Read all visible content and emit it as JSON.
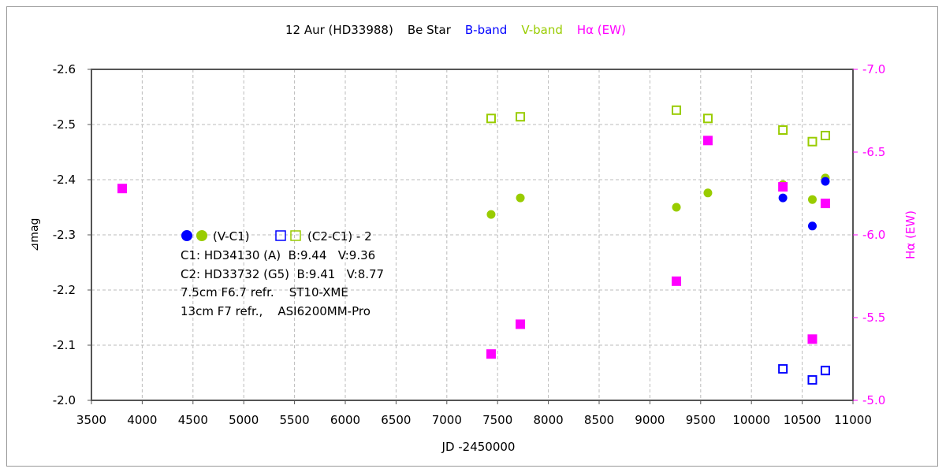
{
  "chart_data": {
    "type": "scatter",
    "title_parts": [
      {
        "text": "12 Aur (HD33988)",
        "color": "#000000"
      },
      {
        "text": "Be Star",
        "color": "#000000"
      },
      {
        "text": "B-band",
        "color": "#0000ff"
      },
      {
        "text": "V-band",
        "color": "#99cc00"
      },
      {
        "text": "Hα (EW)",
        "color": "#ff00ff"
      }
    ],
    "xlabel": "JD -2450000",
    "ylabel": "⊿mag",
    "y2label": "Hα (EW)",
    "xlim": [
      3500,
      11000
    ],
    "xticks": [
      3500,
      4000,
      4500,
      5000,
      5500,
      6000,
      6500,
      7000,
      7500,
      8000,
      8500,
      9000,
      9500,
      10000,
      10500,
      11000
    ],
    "ylim": [
      -2.6,
      -2.0
    ],
    "yticks": [
      -2.6,
      -2.5,
      -2.4,
      -2.3,
      -2.2,
      -2.1,
      -2.0
    ],
    "ytick_labels": [
      "-2.6",
      "-2.5",
      "-2.4",
      "-2.3",
      "-2.2",
      "-2.1",
      "-2.0"
    ],
    "y2lim": [
      -7.0,
      -5.0
    ],
    "y2ticks": [
      -7.0,
      -6.5,
      -6.0,
      -5.5,
      -5.0
    ],
    "y2tick_labels": [
      "-7.0",
      "-6.5",
      "-6.0",
      "-5.5",
      "-5.0"
    ],
    "y_inverted_display": "top value -2.6, bottom -2.0",
    "grid": true,
    "series": [
      {
        "key": "b_vc1",
        "marker": "filled-circle",
        "color": "#0000ff",
        "axis": "left",
        "x": [
          10310,
          10600,
          10728
        ],
        "y": [
          -2.367,
          -2.316,
          -2.397
        ]
      },
      {
        "key": "v_vc1",
        "marker": "filled-circle",
        "color": "#99cc00",
        "axis": "left",
        "x": [
          7436,
          7724,
          9261,
          9571,
          10310,
          10600,
          10728
        ],
        "y": [
          -2.337,
          -2.367,
          -2.35,
          -2.376,
          -2.391,
          -2.364,
          -2.403
        ]
      },
      {
        "key": "b_c2c1",
        "marker": "open-square",
        "color": "#0000ff",
        "axis": "left",
        "x": [
          10310,
          10600,
          10728
        ],
        "y": [
          -2.057,
          -2.037,
          -2.054
        ]
      },
      {
        "key": "v_c2c1",
        "marker": "open-square",
        "color": "#99cc00",
        "axis": "left",
        "x": [
          7436,
          7724,
          9261,
          9571,
          10310,
          10600,
          10728
        ],
        "y": [
          -2.511,
          -2.514,
          -2.526,
          -2.511,
          -2.49,
          -2.469,
          -2.48
        ]
      },
      {
        "key": "halpha",
        "marker": "filled-square",
        "color": "#ff00ff",
        "axis": "right",
        "x": [
          3803,
          7436,
          7724,
          9261,
          9571,
          10310,
          10600,
          10728
        ],
        "y": [
          -6.28,
          -5.28,
          -5.46,
          -5.72,
          -6.57,
          -6.29,
          -5.37,
          -6.19
        ]
      }
    ],
    "legend": {
      "placement": "left-middle",
      "vc1_label": "(V-C1)",
      "c2c1_label": "(C2-C1) - 2",
      "notes": [
        "C1: HD34130 (A)  B:9.44   V:9.36",
        "C2: HD33732 (G5)  B:9.41   V:8.77",
        "7.5cm F6.7 refr.    ST10-XME",
        "13cm F7 refr.,    ASI6200MM-Pro"
      ]
    }
  }
}
